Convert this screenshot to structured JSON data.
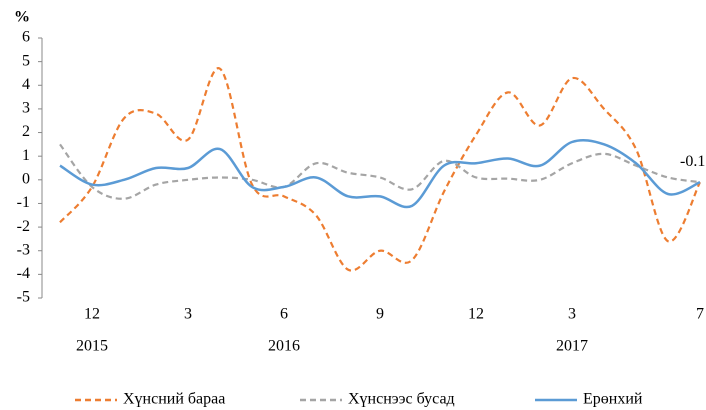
{
  "chart_data": {
    "type": "line",
    "y_label": "%",
    "categories": [
      null,
      "12",
      null,
      null,
      "3",
      null,
      null,
      "6",
      null,
      null,
      "9",
      null,
      null,
      "12",
      null,
      null,
      "3",
      null,
      null,
      null,
      "7"
    ],
    "years": [
      null,
      "2015",
      null,
      null,
      null,
      null,
      null,
      "2016",
      null,
      null,
      null,
      null,
      null,
      null,
      null,
      null,
      "2017",
      null,
      null,
      null,
      null
    ],
    "series": [
      {
        "name": "Хүнсний бараа",
        "color": "#ed7d31",
        "dash": true,
        "values": [
          -1.8,
          -0.3,
          2.6,
          2.8,
          1.7,
          4.7,
          -0.2,
          -0.7,
          -1.5,
          -3.8,
          -3.0,
          -3.4,
          -0.5,
          1.9,
          3.7,
          2.3,
          4.3,
          3.0,
          1.3,
          -2.6,
          -0.1
        ]
      },
      {
        "name": "Хүнснээс бусад",
        "color": "#a5a5a5",
        "dash": true,
        "values": [
          1.5,
          -0.3,
          -0.8,
          -0.2,
          0,
          0.1,
          0,
          -0.3,
          0.7,
          0.3,
          0.1,
          -0.4,
          0.8,
          0.1,
          0.05,
          0,
          0.7,
          1.1,
          0.6,
          0.1,
          -0.1
        ]
      },
      {
        "name": "Ерөнхий",
        "color": "#5b9bd5",
        "dash": false,
        "values": [
          0.6,
          -0.2,
          0,
          0.5,
          0.5,
          1.3,
          -0.3,
          -0.3,
          0.1,
          -0.7,
          -0.7,
          -1.1,
          0.6,
          0.7,
          0.9,
          0.6,
          1.6,
          1.5,
          0.7,
          -0.6,
          -0.1
        ]
      }
    ],
    "annotations": [
      {
        "text": "-0.1",
        "series": 2
      }
    ],
    "ylim": [
      -5,
      6
    ],
    "yticks": [
      -5,
      -4,
      -3,
      -2,
      -1,
      0,
      1,
      2,
      3,
      4,
      5,
      6
    ],
    "legend": "bottom"
  }
}
